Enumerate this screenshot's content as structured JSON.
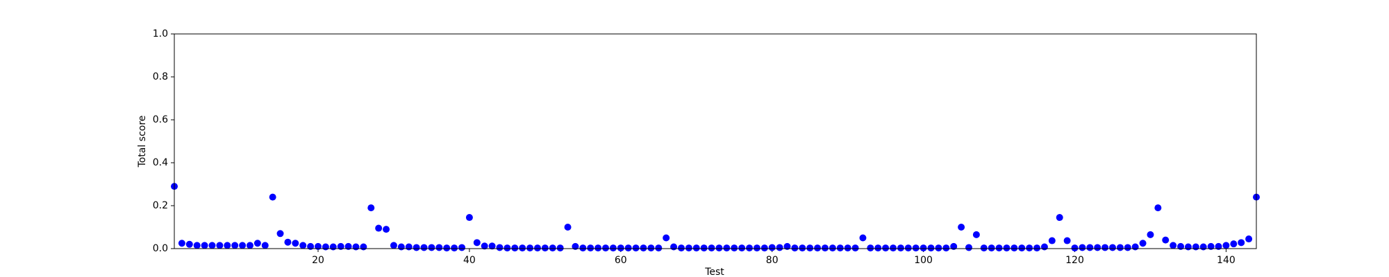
{
  "chart_data": {
    "type": "scatter",
    "xlabel": "Test",
    "ylabel": "Total score",
    "color": "#0000ff",
    "xlim": [
      1,
      144
    ],
    "xticks": [
      20,
      40,
      60,
      80,
      100,
      120,
      140
    ],
    "ylim": [
      0,
      1
    ],
    "yticks": [
      {
        "value": 0,
        "label": "0.0"
      },
      0.2,
      0.4,
      0.6,
      0.8,
      {
        "value": 1,
        "label": "1.0"
      }
    ],
    "x": [
      1,
      2,
      3,
      4,
      5,
      6,
      7,
      8,
      9,
      10,
      11,
      12,
      13,
      14,
      15,
      16,
      17,
      18,
      19,
      20,
      21,
      22,
      23,
      24,
      25,
      26,
      27,
      28,
      29,
      30,
      31,
      32,
      33,
      34,
      35,
      36,
      37,
      38,
      39,
      40,
      41,
      42,
      43,
      44,
      45,
      46,
      47,
      48,
      49,
      50,
      51,
      52,
      53,
      54,
      55,
      56,
      57,
      58,
      59,
      60,
      61,
      62,
      63,
      64,
      65,
      66,
      67,
      68,
      69,
      70,
      71,
      72,
      73,
      74,
      75,
      76,
      77,
      78,
      79,
      80,
      81,
      82,
      83,
      84,
      85,
      86,
      87,
      88,
      89,
      90,
      91,
      92,
      93,
      94,
      95,
      96,
      97,
      98,
      99,
      100,
      101,
      102,
      103,
      104,
      105,
      106,
      107,
      108,
      109,
      110,
      111,
      112,
      113,
      114,
      115,
      116,
      117,
      118,
      119,
      120,
      121,
      122,
      123,
      124,
      125,
      126,
      127,
      128,
      129,
      130,
      131,
      132,
      133,
      134,
      135,
      136,
      137,
      138,
      139,
      140,
      141,
      142,
      143,
      144
    ],
    "values": [
      0.29,
      0.025,
      0.02,
      0.015,
      0.015,
      0.015,
      0.015,
      0.015,
      0.015,
      0.015,
      0.015,
      0.025,
      0.015,
      0.24,
      0.07,
      0.03,
      0.025,
      0.015,
      0.01,
      0.01,
      0.008,
      0.008,
      0.01,
      0.01,
      0.008,
      0.008,
      0.19,
      0.095,
      0.09,
      0.015,
      0.008,
      0.008,
      0.005,
      0.005,
      0.005,
      0.005,
      0.003,
      0.003,
      0.005,
      0.145,
      0.028,
      0.012,
      0.012,
      0.005,
      0.003,
      0.003,
      0.003,
      0.003,
      0.003,
      0.003,
      0.003,
      0.003,
      0.1,
      0.01,
      0.003,
      0.003,
      0.003,
      0.003,
      0.003,
      0.003,
      0.003,
      0.003,
      0.003,
      0.003,
      0.003,
      0.05,
      0.008,
      0.003,
      0.003,
      0.003,
      0.003,
      0.003,
      0.003,
      0.003,
      0.003,
      0.003,
      0.003,
      0.003,
      0.003,
      0.005,
      0.005,
      0.01,
      0.003,
      0.003,
      0.003,
      0.003,
      0.003,
      0.003,
      0.003,
      0.003,
      0.003,
      0.05,
      0.003,
      0.003,
      0.003,
      0.003,
      0.003,
      0.003,
      0.003,
      0.003,
      0.003,
      0.003,
      0.003,
      0.01,
      0.1,
      0.005,
      0.065,
      0.003,
      0.003,
      0.003,
      0.003,
      0.003,
      0.003,
      0.003,
      0.003,
      0.008,
      0.037,
      0.145,
      0.037,
      0.003,
      0.005,
      0.005,
      0.005,
      0.005,
      0.005,
      0.005,
      0.005,
      0.008,
      0.025,
      0.065,
      0.19,
      0.04,
      0.015,
      0.01,
      0.008,
      0.008,
      0.008,
      0.01,
      0.01,
      0.015,
      0.022,
      0.028,
      0.045,
      0.24
    ]
  }
}
